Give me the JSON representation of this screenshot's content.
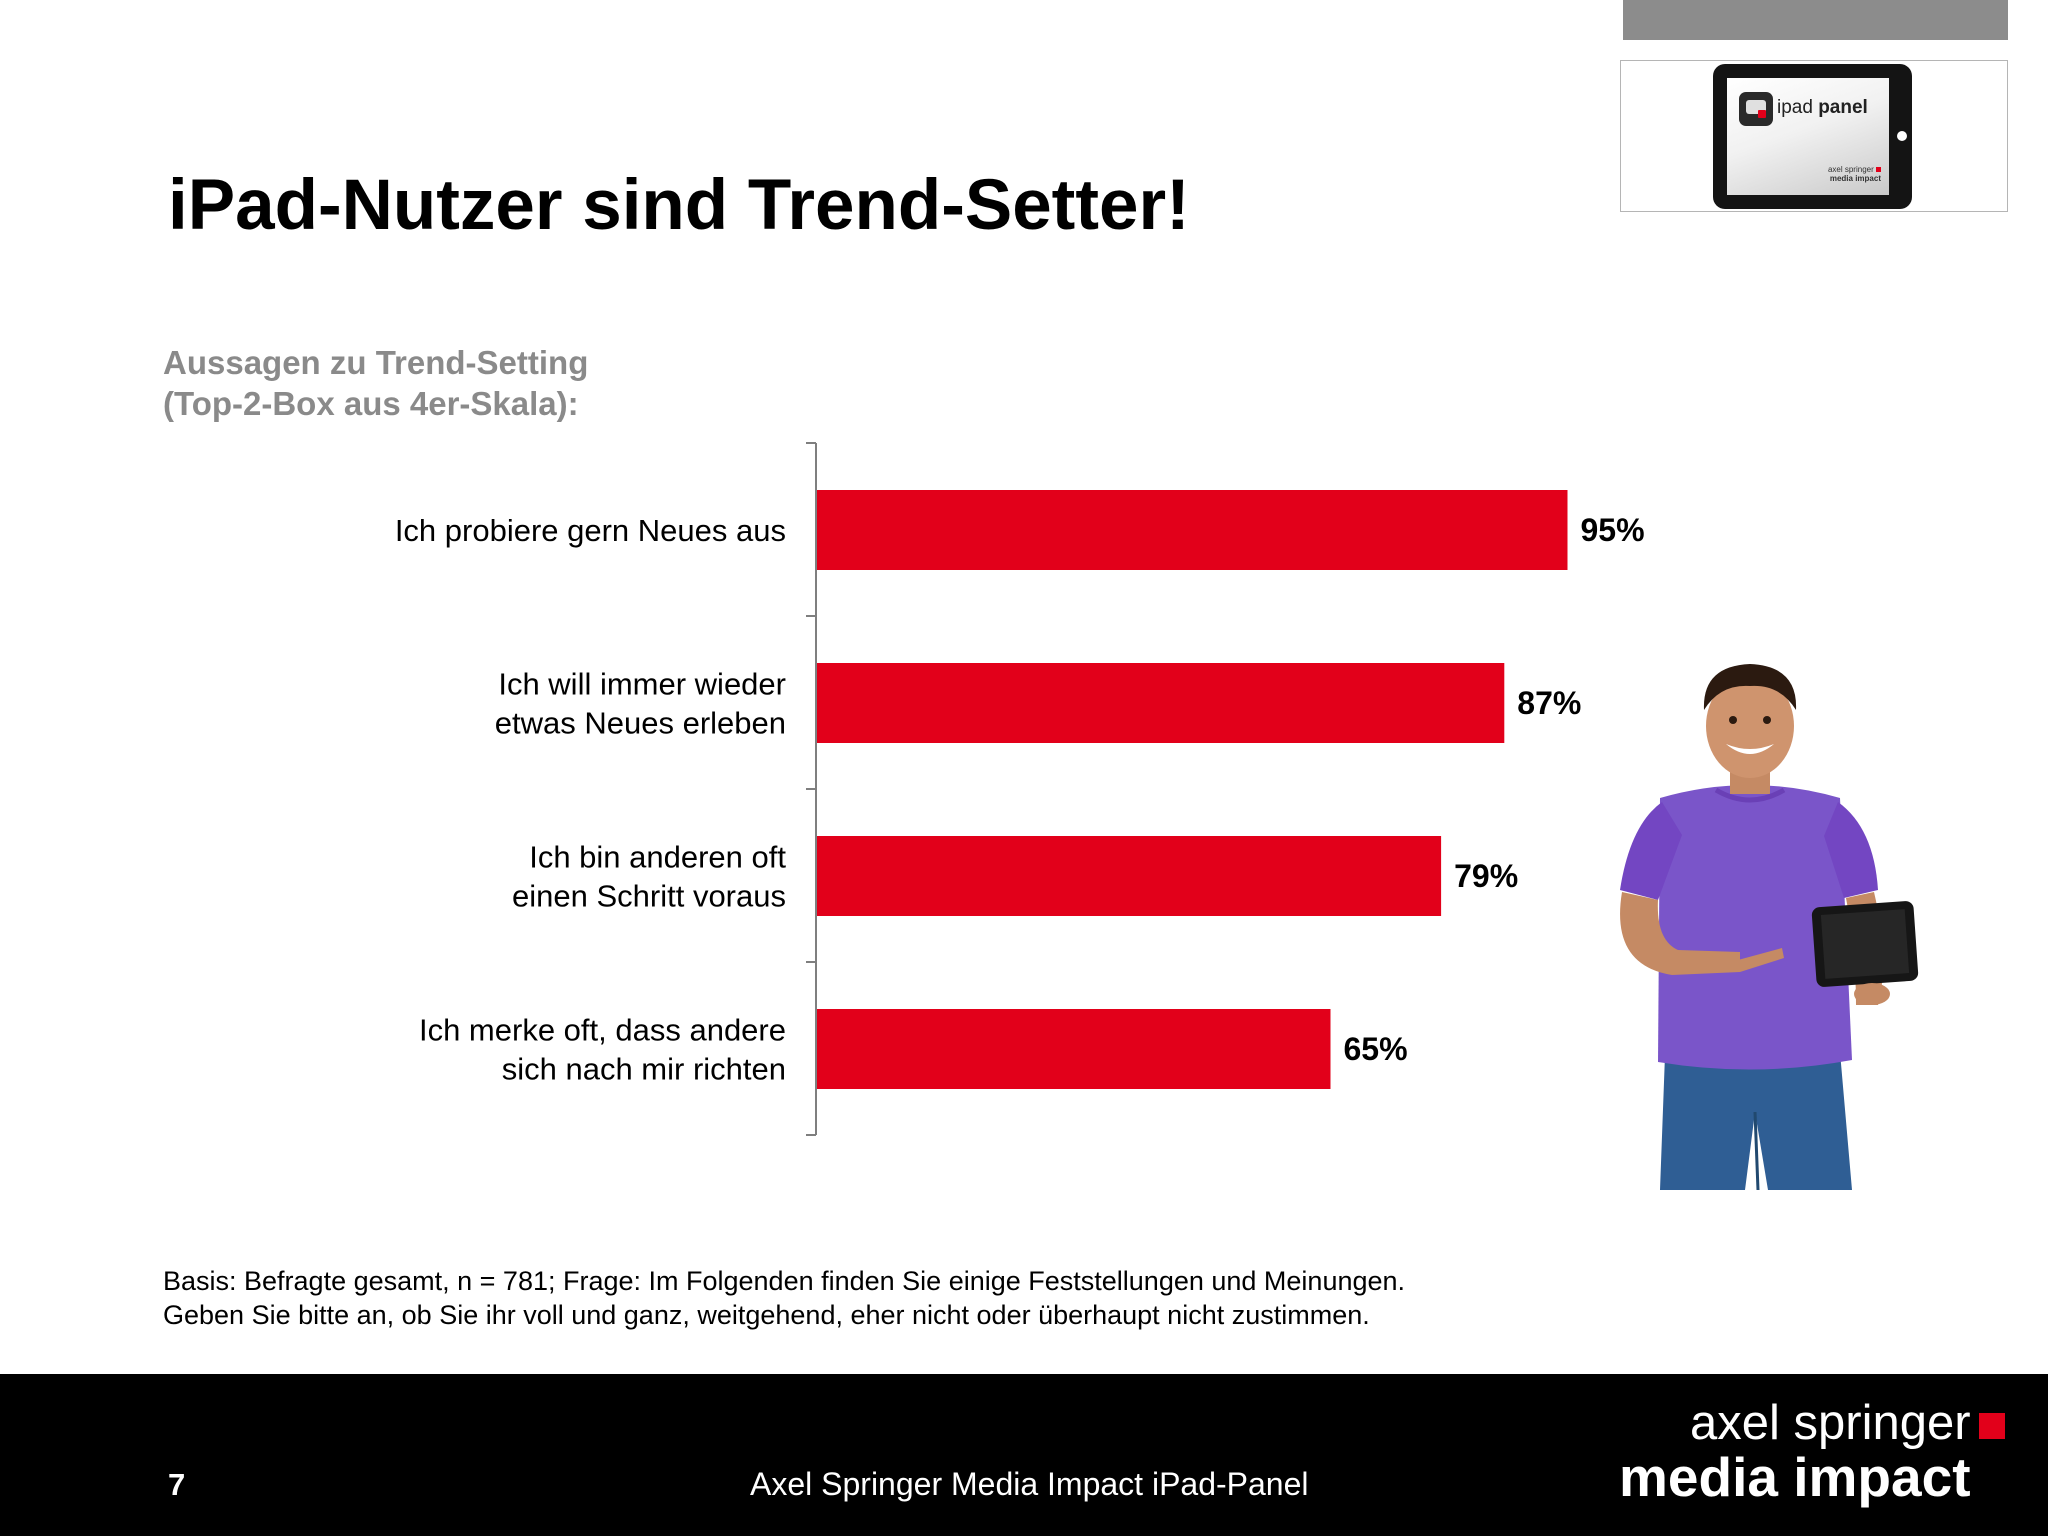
{
  "title": "iPad-Nutzer sind Trend-Setter!",
  "subtitle_lines": [
    "Aussagen zu Trend-Setting",
    "(Top-2-Box aus 4er-Skala):"
  ],
  "colors": {
    "bar": "#e2001a",
    "axis": "#7f7f7f",
    "footer_bg": "#000000",
    "brand_square": "#e2001a",
    "subtitle": "#8a8a8a",
    "shirt": "#7a55c9"
  },
  "chart_data": {
    "type": "bar",
    "orientation": "horizontal",
    "categories": [
      [
        "Ich probiere gern Neues aus"
      ],
      [
        "Ich will immer wieder",
        "etwas Neues erleben"
      ],
      [
        "Ich bin anderen oft",
        "einen Schritt voraus"
      ],
      [
        "Ich merke oft, dass andere",
        "sich nach mir richten"
      ]
    ],
    "values": [
      95,
      87,
      79,
      65
    ],
    "value_labels": [
      "95%",
      "87%",
      "79%",
      "65%"
    ],
    "unit": "%",
    "xlim": [
      0,
      100
    ],
    "grid": false,
    "legend": "none"
  },
  "logo": {
    "panel_name_light": "ipad ",
    "panel_name_bold": "panel",
    "brand_line1": "axel springer",
    "brand_line2": "media impact"
  },
  "footnote_lines": [
    "Basis: Befragte gesamt, n = 781; Frage: Im Folgenden finden Sie einige Feststellungen und Meinungen.",
    "Geben Sie bitte an, ob Sie ihr voll und ganz, weitgehend, eher nicht oder überhaupt nicht zustimmen."
  ],
  "footer": {
    "page_number": "7",
    "text": "Axel Springer Media Impact iPad-Panel",
    "brand_line1": "axel springer",
    "brand_line2": "media impact"
  },
  "images": {
    "person": "smiling young man in purple t-shirt pointing at a tablet"
  }
}
